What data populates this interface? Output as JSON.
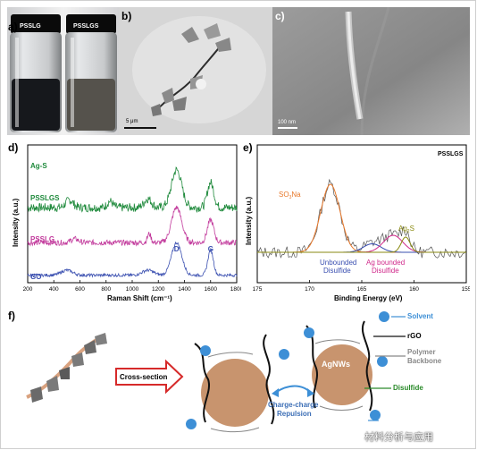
{
  "panels": {
    "a": {
      "label": "a)",
      "vial_left": "PSSLG",
      "vial_right": "PSSLGS",
      "colors": {
        "vial_left_liquid": "#16181c",
        "vial_right_liquid": "#55524c"
      }
    },
    "b": {
      "label": "b)",
      "scale_bar": "5 μm"
    },
    "c": {
      "label": "c)",
      "scale_bar": "100 nm"
    },
    "d": {
      "label": "d)",
      "chart_data": {
        "type": "line",
        "xlabel": "Raman Shift (cm⁻¹)",
        "ylabel": "Intensity (a.u.)",
        "xlim": [
          200,
          1800
        ],
        "x_ticks": [
          200,
          400,
          600,
          800,
          1000,
          1200,
          1400,
          1600,
          1800
        ],
        "grid": false,
        "series": [
          {
            "name": "Ag-S",
            "color": "#1f8a3c",
            "offset": 3.0
          },
          {
            "name": "PSSLGS",
            "color": "#1f8a3c",
            "offset": 3.0
          },
          {
            "name": "PSSLG",
            "color": "#c23a9c",
            "offset": 1.6
          },
          {
            "name": "GO",
            "color": "#3a4fb0",
            "offset": 0.3
          }
        ],
        "annotations": [
          {
            "text": "D",
            "x": 1340
          },
          {
            "text": "G",
            "x": 1600
          }
        ]
      }
    },
    "e": {
      "label": "e)",
      "chart_data": {
        "type": "line",
        "title": "PSSLGS",
        "xlabel": "Binding Energy (eV)",
        "ylabel": "Intensity (a.u.)",
        "xlim": [
          175,
          155
        ],
        "x_ticks": [
          175,
          170,
          165,
          160,
          155
        ],
        "grid": false,
        "series": [
          {
            "name": "SO3Na",
            "color": "#e8782a",
            "center": 168.0,
            "amplitude": 0.8,
            "width": 1.3
          },
          {
            "name": "Unbounded Disulfide",
            "color": "#3a4fb0",
            "center": 164.0,
            "amplitude": 0.1,
            "width": 1.2
          },
          {
            "name": "Ag bounded Disulfide",
            "color": "#d0288a",
            "center": 162.0,
            "amplitude": 0.2,
            "width": 1.3
          },
          {
            "name": "Ag2S",
            "color": "#8a8a10",
            "center": 160.8,
            "amplitude": 0.18,
            "width": 0.6
          }
        ],
        "labels": [
          {
            "id": "so3na",
            "base": "SO",
            "sub": "3",
            "tail": "Na",
            "color": "#e8782a"
          },
          {
            "id": "unbounded",
            "lines": [
              "Unbounded",
              "Disulfide"
            ],
            "color": "#3a4fb0"
          },
          {
            "id": "agbound",
            "lines": [
              "Ag bounded",
              "Disulfide"
            ],
            "color": "#d0288a"
          },
          {
            "id": "ag2s",
            "base": "Ag",
            "sub": "2",
            "tail": "S",
            "color": "#8a8a10"
          }
        ]
      }
    },
    "f": {
      "label": "f)",
      "cross_section": "Cross-section",
      "agnws": "AgNWs",
      "repulsion_1": "Charge-charge",
      "repulsion_2": "Repulsion",
      "legend": {
        "solvent": "Solvent",
        "rgo": "rGO",
        "polymer_1": "Polymer",
        "polymer_2": "Backbone",
        "disulfide": "Disulfide"
      },
      "colors": {
        "agnw": "#c8946e",
        "solvent": "#3d8fd6",
        "arrow": "#d62a2a",
        "disulfide_text": "#2a8a2a"
      }
    }
  },
  "watermark": "材料分析与应用"
}
